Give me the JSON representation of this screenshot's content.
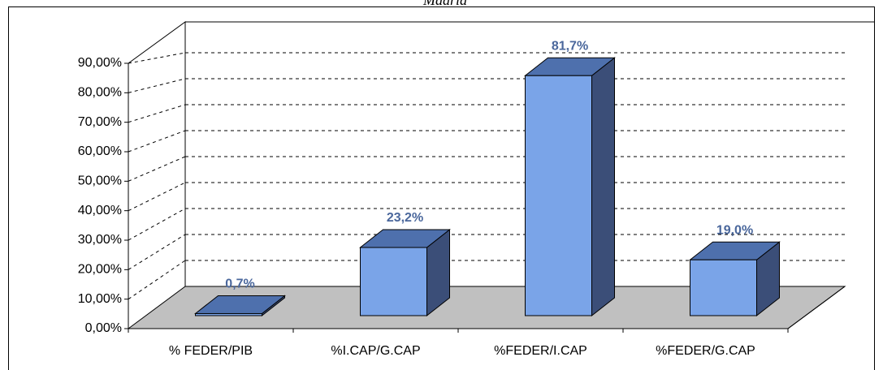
{
  "chart_data": {
    "type": "bar3d",
    "title": "Madrid",
    "categories": [
      "% FEDER/PIB",
      "%I.CAP/G.CAP",
      "%FEDER/I.CAP",
      "%FEDER/G.CAP"
    ],
    "values": [
      0.7,
      23.2,
      81.7,
      19.0
    ],
    "value_labels": [
      "0,7%",
      "23,2%",
      "81,7%",
      "19,0%"
    ],
    "color": "#7aa4e8",
    "ylim": [
      0,
      90
    ],
    "yticks": [
      {
        "value": 0,
        "label": "0,00%"
      },
      {
        "value": 10,
        "label": "10,00%"
      },
      {
        "value": 20,
        "label": "20,00%"
      },
      {
        "value": 30,
        "label": "30,00%"
      },
      {
        "value": 40,
        "label": "40,00%"
      },
      {
        "value": 50,
        "label": "50,00%"
      },
      {
        "value": 60,
        "label": "60,00%"
      },
      {
        "value": 70,
        "label": "70,00%"
      },
      {
        "value": 80,
        "label": "80,00%"
      },
      {
        "value": 90,
        "label": "90,00%"
      }
    ],
    "grid": true
  }
}
